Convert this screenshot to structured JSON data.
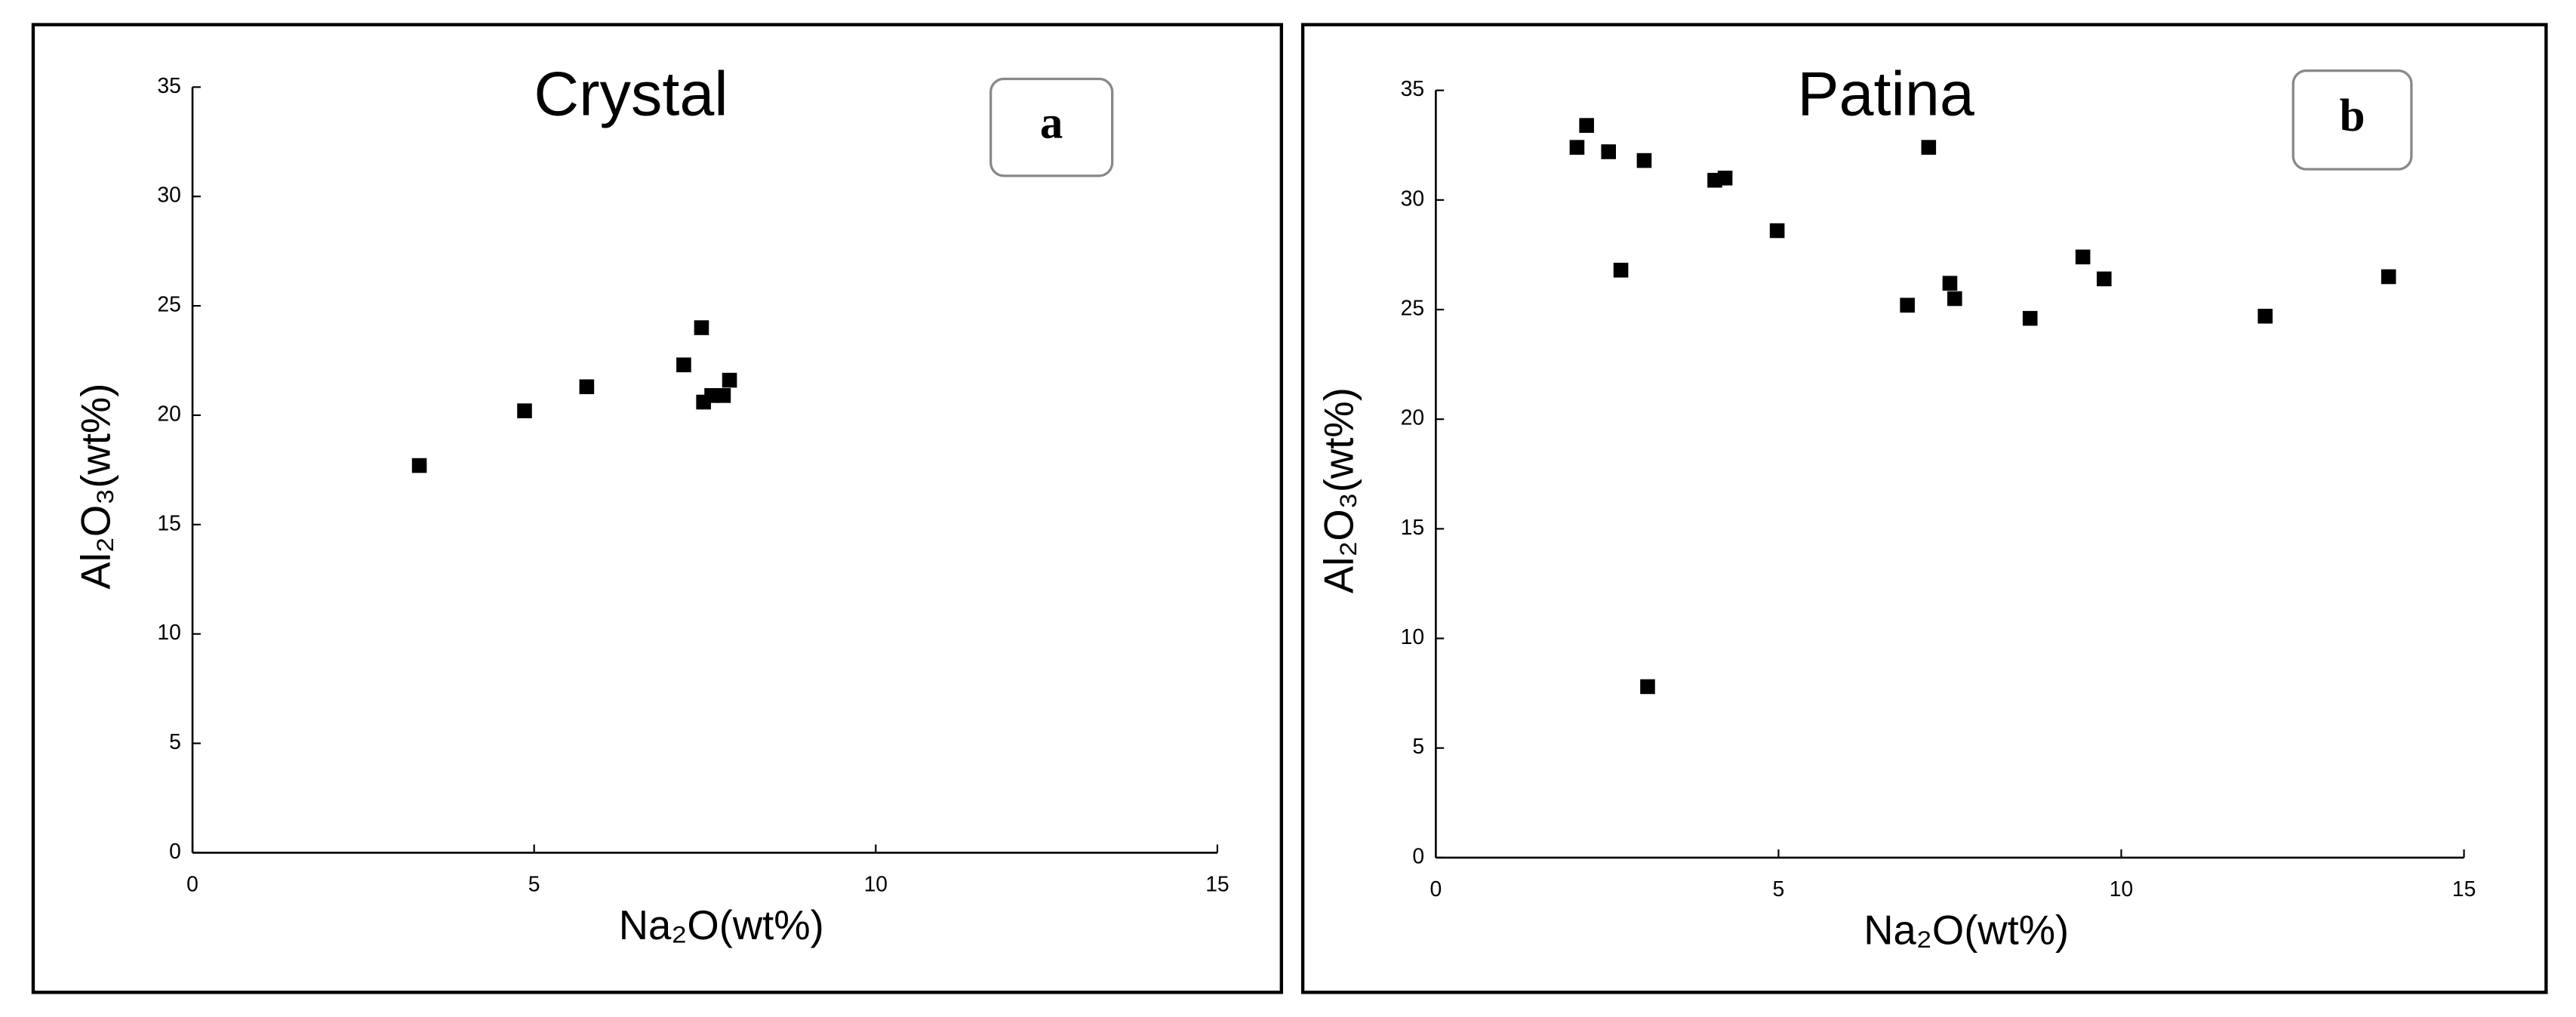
{
  "chart_data": [
    {
      "type": "scatter",
      "title": "Crystal",
      "annotation": "a",
      "x_label": "Na₂O(wt%)",
      "y_label": "Al₂O₃(wt%)",
      "color": "#000000",
      "x": [
        3.32,
        4.86,
        5.77,
        7.19,
        7.45,
        7.48,
        7.6,
        7.77,
        7.86
      ],
      "y": [
        17.7,
        20.2,
        21.3,
        22.3,
        24.0,
        20.6,
        20.9,
        20.9,
        21.6
      ],
      "xlim": [
        0,
        15
      ],
      "ylim": [
        0,
        35
      ],
      "xticks": [
        0,
        5,
        10,
        15
      ],
      "yticks": [
        0,
        5,
        10,
        15,
        20,
        25,
        30,
        35
      ]
    },
    {
      "type": "scatter",
      "title": "Patina",
      "annotation": "b",
      "x_label": "Na₂O(wt%)",
      "y_label": "Al₂O₃(wt%)",
      "color": "#000000",
      "x": [
        2.06,
        2.2,
        2.52,
        2.7,
        3.04,
        3.09,
        4.07,
        4.22,
        4.98,
        6.88,
        7.19,
        7.5,
        7.57,
        8.67,
        9.44,
        9.75,
        12.1,
        13.9
      ],
      "y": [
        32.4,
        33.4,
        32.2,
        26.8,
        31.8,
        7.8,
        30.9,
        31.0,
        28.6,
        25.2,
        32.4,
        26.2,
        25.5,
        24.6,
        27.4,
        26.4,
        24.7,
        26.5
      ],
      "xlim": [
        0,
        15
      ],
      "ylim": [
        0,
        35
      ],
      "xticks": [
        0,
        5,
        10,
        15
      ],
      "yticks": [
        0,
        5,
        10,
        15,
        20,
        25,
        30,
        35
      ]
    }
  ]
}
